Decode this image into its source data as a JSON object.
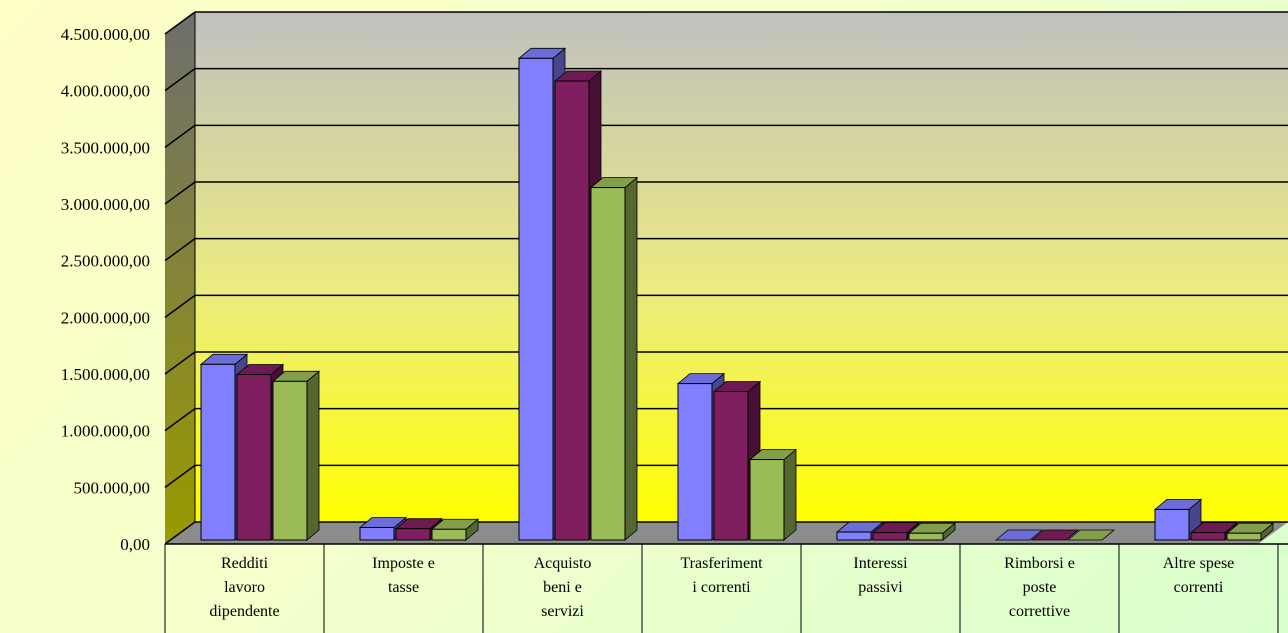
{
  "chart_data": {
    "type": "bar",
    "title": "",
    "xlabel": "",
    "ylabel": "",
    "ylim": [
      0,
      4500000
    ],
    "y_ticks": [
      "0,00",
      "500.000,00",
      "1.000.000,00",
      "1.500.000,00",
      "2.000.000,00",
      "2.500.000,00",
      "3.000.000,00",
      "3.500.000,00",
      "4.000.000,00",
      "4.500.000,00"
    ],
    "categories": [
      [
        "Redditi",
        "lavoro",
        "dipendente"
      ],
      [
        "Imposte e",
        "tasse"
      ],
      [
        "Acquisto",
        "beni e",
        "servizi"
      ],
      [
        "Trasferiment",
        "i correnti"
      ],
      [
        "Interessi",
        "passivi"
      ],
      [
        "Rimborsi e",
        "poste",
        "correttive"
      ],
      [
        "Altre spese",
        "correnti"
      ]
    ],
    "series": [
      {
        "values": [
          1550000,
          110000,
          4250000,
          1380000,
          70000,
          0,
          270000
        ],
        "color": "#8080ff"
      },
      {
        "values": [
          1460000,
          100000,
          4050000,
          1310000,
          65000,
          0,
          65000
        ],
        "color": "#7f1f5f"
      },
      {
        "values": [
          1400000,
          95000,
          3110000,
          710000,
          60000,
          0,
          60000
        ],
        "color": "#9bbb59"
      }
    ],
    "grid": true,
    "legend": "none"
  }
}
